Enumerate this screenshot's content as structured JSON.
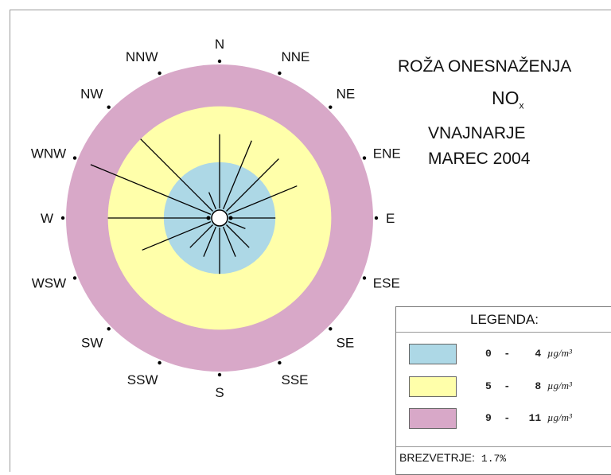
{
  "chart_data": {
    "type": "polar-rose",
    "title": "ROŽA ONESNAŽENJA",
    "pollutant": "NO",
    "pollutant_subscript": "x",
    "station": "VNAJNARJE",
    "period": "MAREC 2004",
    "directions": [
      "N",
      "NNE",
      "NE",
      "ENE",
      "E",
      "ESE",
      "SE",
      "SSE",
      "S",
      "SSW",
      "SW",
      "WSW",
      "W",
      "WNW",
      "NW",
      "NNW"
    ],
    "values": [
      6,
      6,
      6,
      6,
      4,
      2,
      3,
      3,
      4,
      3,
      3,
      6,
      8,
      10,
      8,
      2
    ],
    "rmax": 11,
    "bands": [
      {
        "from": 0,
        "to": 4,
        "color": "#add8e6"
      },
      {
        "from": 5,
        "to": 8,
        "color": "#ffffaa"
      },
      {
        "from": 9,
        "to": 11,
        "color": "#d8a8c8"
      }
    ],
    "legend": {
      "title": "LEGENDA:",
      "items": [
        {
          "from": "0",
          "to": "4",
          "unit": "µg/m³",
          "color": "#add8e6"
        },
        {
          "from": "5",
          "to": "8",
          "unit": "µg/m³",
          "color": "#ffffaa"
        },
        {
          "from": "9",
          "to": "11",
          "unit": "µg/m³",
          "color": "#d8a8c8"
        }
      ]
    },
    "calm_label": "BREZVETRJE:",
    "calm_value": "1.7%"
  }
}
